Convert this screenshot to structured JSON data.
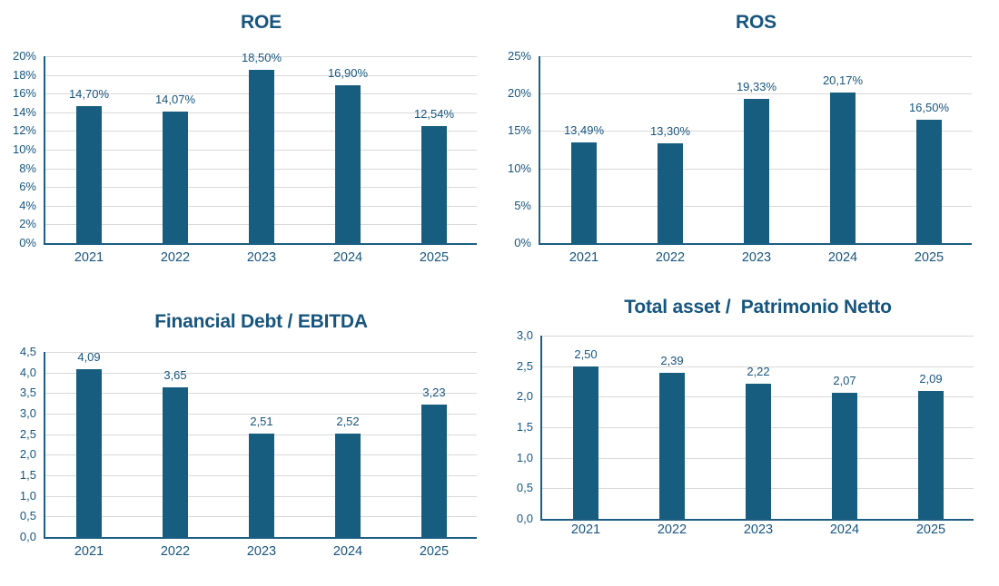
{
  "page": {
    "background_color": "#FFFFFF"
  },
  "colors": {
    "bar_fill": "#165D80",
    "text_blue": "#17557E",
    "axis_line": "#1D5E82",
    "gridline": "#D9D9D9"
  },
  "chart_data": [
    {
      "type": "bar",
      "title": "ROE",
      "categories": [
        "2021",
        "2022",
        "2023",
        "2024",
        "2025"
      ],
      "values": [
        14.7,
        14.07,
        18.5,
        16.9,
        12.54
      ],
      "value_labels": [
        "14,70%",
        "14,07%",
        "18,50%",
        "16,90%",
        "12,54%"
      ],
      "ylim": [
        0,
        20
      ],
      "ytick_step": 2,
      "ytick_labels": [
        "0%",
        "2%",
        "4%",
        "6%",
        "8%",
        "10%",
        "12%",
        "14%",
        "16%",
        "18%",
        "20%"
      ],
      "grid": true,
      "legend": "none",
      "value_label_position": "above-bar"
    },
    {
      "type": "bar",
      "title": "ROS",
      "categories": [
        "2021",
        "2022",
        "2023",
        "2024",
        "2025"
      ],
      "values": [
        13.49,
        13.3,
        19.33,
        20.17,
        16.5
      ],
      "value_labels": [
        "13,49%",
        "13,30%",
        "19,33%",
        "20,17%",
        "16,50%"
      ],
      "ylim": [
        0,
        25
      ],
      "ytick_step": 5,
      "ytick_labels": [
        "0%",
        "5%",
        "10%",
        "15%",
        "20%",
        "25%"
      ],
      "grid": true,
      "legend": "none",
      "value_label_position": "above-bar"
    },
    {
      "type": "bar",
      "title": "Financial Debt / EBITDA",
      "categories": [
        "2021",
        "2022",
        "2023",
        "2024",
        "2025"
      ],
      "values": [
        4.09,
        3.65,
        2.51,
        2.52,
        3.23
      ],
      "value_labels": [
        "4,09",
        "3,65",
        "2,51",
        "2,52",
        "3,23"
      ],
      "ylim": [
        0,
        4.5
      ],
      "ytick_step": 0.5,
      "ytick_labels": [
        "0,0",
        "0,5",
        "1,0",
        "1,5",
        "2,0",
        "2,5",
        "3,0",
        "3,5",
        "4,0",
        "4,5"
      ],
      "grid": true,
      "legend": "none",
      "value_label_position": "above-bar"
    },
    {
      "type": "bar",
      "title": "Total asset /  Patrimonio Netto",
      "categories": [
        "2021",
        "2022",
        "2023",
        "2024",
        "2025"
      ],
      "values": [
        2.5,
        2.39,
        2.22,
        2.07,
        2.09
      ],
      "value_labels": [
        "2,50",
        "2,39",
        "2,22",
        "2,07",
        "2,09"
      ],
      "ylim": [
        0,
        3.0
      ],
      "ytick_step": 0.5,
      "ytick_labels": [
        "0,0",
        "0,5",
        "1,0",
        "1,5",
        "2,0",
        "2,5",
        "3,0"
      ],
      "grid": true,
      "legend": "none",
      "value_label_position": "above-bar"
    }
  ]
}
